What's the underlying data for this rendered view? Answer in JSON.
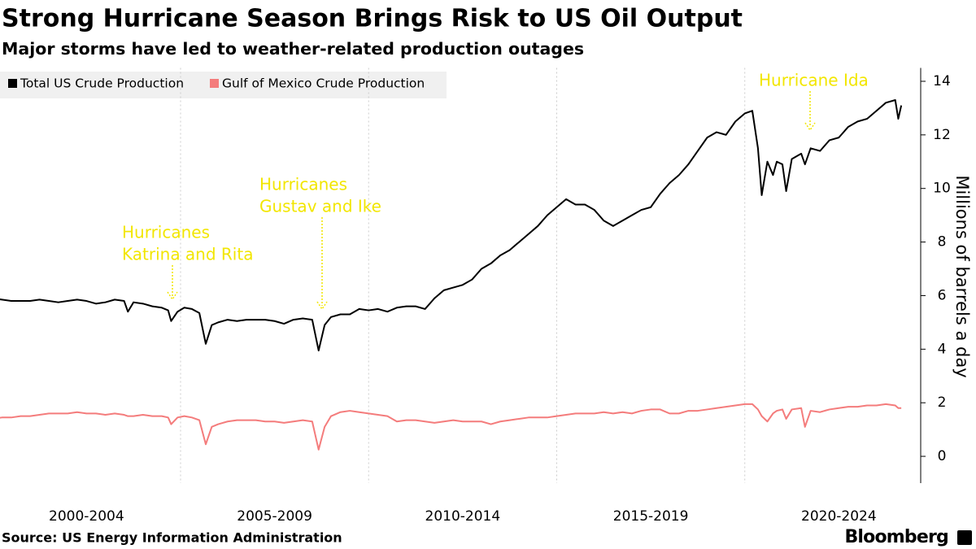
{
  "chart_data": {
    "type": "line",
    "title": "Strong Hurricane Season Brings Risk to US Oil Output",
    "subtitle": "Major storms have led to weather-related production outages",
    "ylabel": "Millions of barrels a day",
    "source": "Source: US Energy Information Administration",
    "brand": "Bloomberg",
    "annotations": [
      [
        "Hurricanes",
        "Katrina and Rita"
      ],
      [
        "Hurricanes",
        "Gustav and Ike"
      ],
      [
        "Hurricane Ida"
      ]
    ],
    "annotation_color": "#f2e600",
    "x": [
      2000.0,
      2000.25,
      2000.5,
      2000.75,
      2001.0,
      2001.25,
      2001.5,
      2001.75,
      2002.0,
      2002.25,
      2002.5,
      2002.75,
      2003.0,
      2003.25,
      2003.5,
      2003.6,
      2003.75,
      2004.0,
      2004.25,
      2004.5,
      2004.67,
      2004.75,
      2004.92,
      2005.1,
      2005.3,
      2005.5,
      2005.67,
      2005.83,
      2006.0,
      2006.25,
      2006.5,
      2006.75,
      2007.0,
      2007.25,
      2007.5,
      2007.75,
      2008.0,
      2008.25,
      2008.5,
      2008.67,
      2008.83,
      2009.0,
      2009.25,
      2009.5,
      2009.75,
      2010.0,
      2010.25,
      2010.5,
      2010.75,
      2011.0,
      2011.25,
      2011.5,
      2011.75,
      2012.0,
      2012.25,
      2012.5,
      2012.75,
      2013.0,
      2013.25,
      2013.5,
      2013.75,
      2014.0,
      2014.25,
      2014.5,
      2014.75,
      2015.0,
      2015.25,
      2015.5,
      2015.75,
      2016.0,
      2016.25,
      2016.5,
      2016.75,
      2017.0,
      2017.25,
      2017.5,
      2017.75,
      2018.0,
      2018.25,
      2018.5,
      2018.75,
      2019.0,
      2019.25,
      2019.5,
      2019.75,
      2020.0,
      2020.2,
      2020.35,
      2020.45,
      2020.6,
      2020.75,
      2020.85,
      2021.0,
      2021.1,
      2021.25,
      2021.5,
      2021.6,
      2021.75,
      2022.0,
      2022.25,
      2022.5,
      2022.75,
      2023.0,
      2023.25,
      2023.5,
      2023.75,
      2024.0,
      2024.08,
      2024.16
    ],
    "series": [
      {
        "name": "Total US Crude Production",
        "color": "#000000",
        "values": [
          5.9,
          5.85,
          5.8,
          5.8,
          5.8,
          5.85,
          5.8,
          5.75,
          5.8,
          5.85,
          5.8,
          5.7,
          5.75,
          5.85,
          5.8,
          5.4,
          5.75,
          5.7,
          5.6,
          5.55,
          5.45,
          5.05,
          5.4,
          5.55,
          5.5,
          5.35,
          4.2,
          4.9,
          5.0,
          5.1,
          5.05,
          5.1,
          5.1,
          5.1,
          5.05,
          4.95,
          5.1,
          5.15,
          5.1,
          3.95,
          4.9,
          5.2,
          5.3,
          5.3,
          5.5,
          5.45,
          5.5,
          5.4,
          5.55,
          5.6,
          5.6,
          5.5,
          5.9,
          6.2,
          6.3,
          6.4,
          6.6,
          7.0,
          7.2,
          7.5,
          7.7,
          8.0,
          8.3,
          8.6,
          9.0,
          9.3,
          9.6,
          9.4,
          9.4,
          9.2,
          8.8,
          8.6,
          8.8,
          9.0,
          9.2,
          9.3,
          9.8,
          10.2,
          10.5,
          10.9,
          11.4,
          11.9,
          12.1,
          12.0,
          12.5,
          12.8,
          12.9,
          11.5,
          9.75,
          11.0,
          10.5,
          11.0,
          10.9,
          9.9,
          11.1,
          11.3,
          10.9,
          11.5,
          11.4,
          11.8,
          11.9,
          12.3,
          12.5,
          12.6,
          12.9,
          13.2,
          13.3,
          12.6,
          13.1
        ]
      },
      {
        "name": "Gulf of Mexico Crude Production",
        "color": "#f47c7c",
        "values": [
          1.4,
          1.45,
          1.45,
          1.5,
          1.5,
          1.55,
          1.6,
          1.6,
          1.6,
          1.65,
          1.6,
          1.6,
          1.55,
          1.6,
          1.55,
          1.5,
          1.5,
          1.55,
          1.5,
          1.5,
          1.45,
          1.2,
          1.45,
          1.5,
          1.45,
          1.35,
          0.45,
          1.1,
          1.2,
          1.3,
          1.35,
          1.35,
          1.35,
          1.3,
          1.3,
          1.25,
          1.3,
          1.35,
          1.3,
          0.25,
          1.1,
          1.5,
          1.65,
          1.7,
          1.65,
          1.6,
          1.55,
          1.5,
          1.3,
          1.35,
          1.35,
          1.3,
          1.25,
          1.3,
          1.35,
          1.3,
          1.3,
          1.3,
          1.2,
          1.3,
          1.35,
          1.4,
          1.45,
          1.45,
          1.45,
          1.5,
          1.55,
          1.6,
          1.6,
          1.6,
          1.65,
          1.6,
          1.65,
          1.6,
          1.7,
          1.75,
          1.75,
          1.6,
          1.6,
          1.7,
          1.7,
          1.75,
          1.8,
          1.85,
          1.9,
          1.95,
          1.95,
          1.75,
          1.5,
          1.3,
          1.6,
          1.7,
          1.75,
          1.4,
          1.75,
          1.8,
          1.1,
          1.7,
          1.65,
          1.75,
          1.8,
          1.85,
          1.85,
          1.9,
          1.9,
          1.95,
          1.9,
          1.8,
          1.8
        ]
      }
    ],
    "xlim": [
      2000.2,
      2024.46
    ],
    "xticks": [
      {
        "value": 2002.5,
        "label": "2000-2004"
      },
      {
        "value": 2007.5,
        "label": "2005-2009"
      },
      {
        "value": 2012.5,
        "label": "2010-2014"
      },
      {
        "value": 2017.5,
        "label": "2015-2019"
      },
      {
        "value": 2022.5,
        "label": "2020-2024"
      }
    ],
    "xgrid": [
      2005,
      2010,
      2015,
      2020
    ],
    "ylim": [
      -1,
      14.5
    ],
    "yticks": [
      0,
      2,
      4,
      6,
      8,
      10,
      12,
      14
    ],
    "y_axis_side": "right",
    "legend": "top-left"
  }
}
